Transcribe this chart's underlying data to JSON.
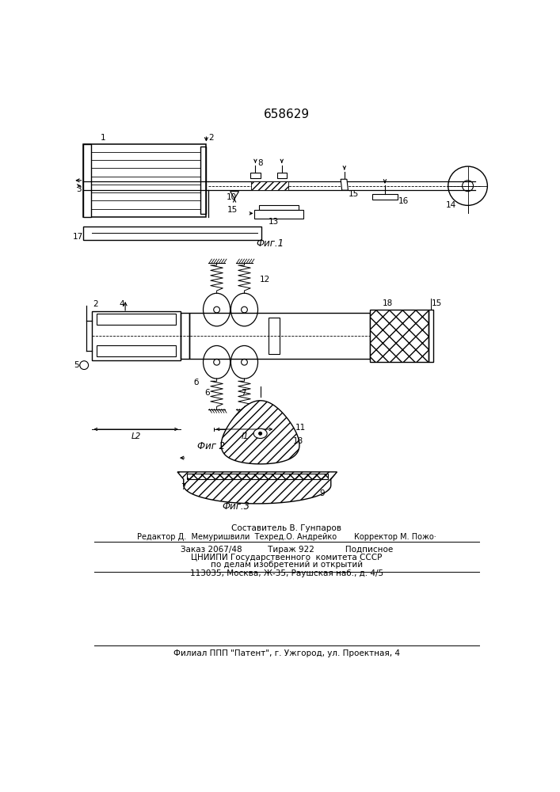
{
  "title": "658629",
  "bg_color": "#ffffff",
  "footer_lines": [
    "Составитель В. Гунпаров",
    "Редактор Д.  Мемуришвили  Техред.О. Андрейко       Корректор М. Пожо·",
    "Заказ 2067/48          Тираж 922            Подписное",
    "ЦНИИПИ Государственного  комитета СССР",
    "по делам изобретений и открытий",
    "113035, Москва, Ж-35, Раушская наб., д. 4/5",
    "Филиал ППП \"Патент\", г. Ужгород, ул. Проектная, 4"
  ]
}
